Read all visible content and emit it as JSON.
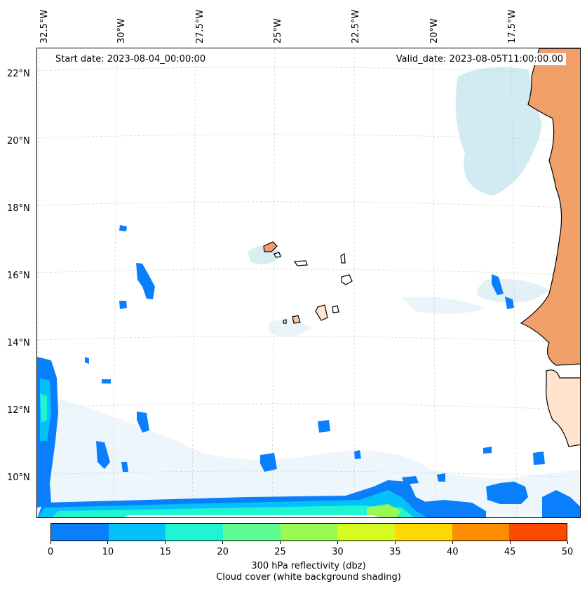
{
  "map": {
    "start_date": "Start date: 2023-08-04_00:00:00",
    "valid_date": "Valid_date: 2023-08-05T11:00:00.00",
    "lon_labels": [
      "32.5°W",
      "30°W",
      "27.5°W",
      "25°W",
      "22.5°W",
      "20°W",
      "17.5°W"
    ],
    "lat_labels": [
      "22°N",
      "20°N",
      "18°N",
      "16°N",
      "14°N",
      "12°N",
      "10°N"
    ]
  },
  "colorbar": {
    "ticks": [
      "0",
      "10",
      "15",
      "20",
      "25",
      "30",
      "35",
      "40",
      "45",
      "50"
    ],
    "colors": [
      "#0a7ffd",
      "#05c1fb",
      "#1ff5d0",
      "#5efc90",
      "#98f854",
      "#d6fb20",
      "#fed801",
      "#fc8c00",
      "#fe4a00"
    ],
    "label_line1": "300 hPa reflectivity (dbz)",
    "label_line2": "Cloud cover (white background shading)"
  }
}
